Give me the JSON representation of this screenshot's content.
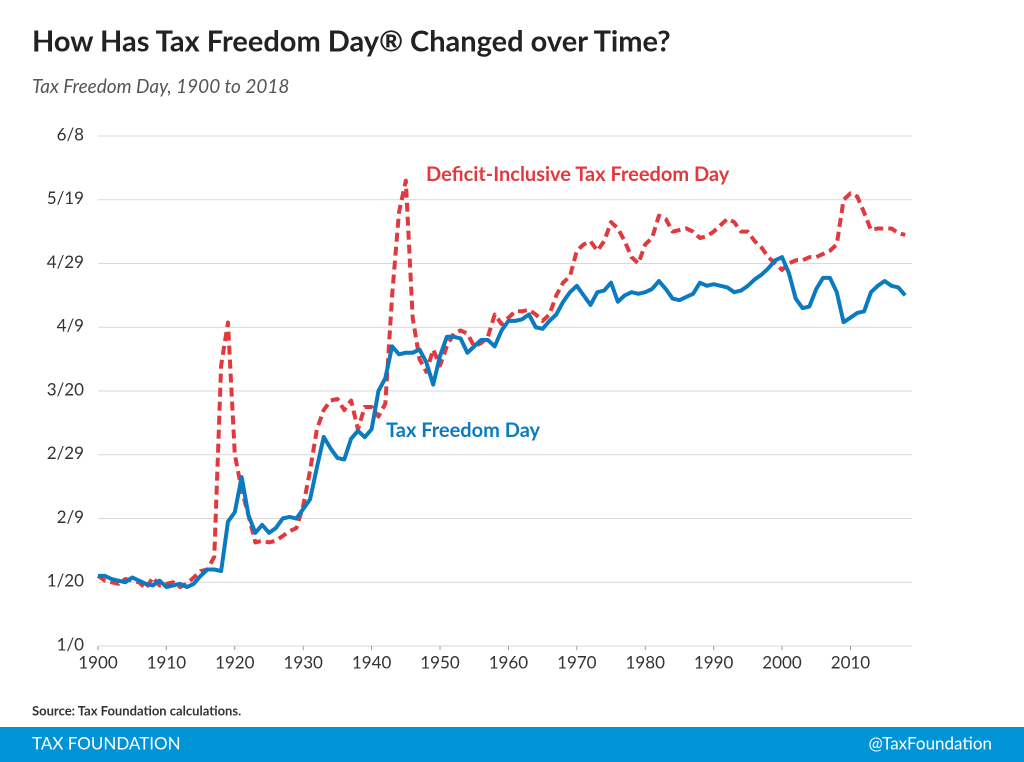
{
  "chart_data": {
    "type": "line",
    "title": "How Has Tax Freedom Day® Changed over Time?",
    "subtitle": "Tax Freedom Day, 1900 to 2018",
    "annotations": [
      "Deficit-Inclusive Tax Freedom Day",
      "Tax Freedom Day"
    ],
    "source": "Source: Tax Foundation calculations.",
    "footer_left": "TAX FOUNDATION",
    "footer_right": "@TaxFoundation",
    "x": [
      1900,
      1901,
      1902,
      1903,
      1904,
      1905,
      1906,
      1907,
      1908,
      1909,
      1910,
      1911,
      1912,
      1913,
      1914,
      1915,
      1916,
      1917,
      1918,
      1919,
      1920,
      1921,
      1922,
      1923,
      1924,
      1925,
      1926,
      1927,
      1928,
      1929,
      1930,
      1931,
      1932,
      1933,
      1934,
      1935,
      1936,
      1937,
      1938,
      1939,
      1940,
      1941,
      1942,
      1943,
      1944,
      1945,
      1946,
      1947,
      1948,
      1949,
      1950,
      1951,
      1952,
      1953,
      1954,
      1955,
      1956,
      1957,
      1958,
      1959,
      1960,
      1961,
      1962,
      1963,
      1964,
      1965,
      1966,
      1967,
      1968,
      1969,
      1970,
      1971,
      1972,
      1973,
      1974,
      1975,
      1976,
      1977,
      1978,
      1979,
      1980,
      1981,
      1982,
      1983,
      1984,
      1985,
      1986,
      1987,
      1988,
      1989,
      1990,
      1991,
      1992,
      1993,
      1994,
      1995,
      1996,
      1997,
      1998,
      1999,
      2000,
      2001,
      2002,
      2003,
      2004,
      2005,
      2006,
      2007,
      2008,
      2009,
      2010,
      2011,
      2012,
      2013,
      2014,
      2015,
      2016,
      2017,
      2018
    ],
    "series": [
      {
        "name": "Tax Freedom Day",
        "color": "#0b7bc1",
        "dashed": false,
        "values": [
          22,
          22,
          21,
          20.5,
          20,
          21.5,
          20.5,
          19.5,
          19,
          20.5,
          18.5,
          19,
          19.5,
          18.5,
          19.5,
          22,
          24,
          24,
          23.5,
          39,
          42,
          53,
          41,
          35.5,
          38,
          35.5,
          37,
          40,
          40.5,
          40,
          43,
          46,
          56,
          65.6,
          62,
          59,
          58.5,
          65,
          67.5,
          65.5,
          68,
          80,
          84,
          94,
          91.5,
          92,
          92,
          93,
          89,
          82,
          91,
          97,
          97,
          96.5,
          92,
          94,
          96,
          96,
          94,
          99,
          102,
          102,
          102.5,
          104,
          100,
          99.5,
          102,
          104,
          108,
          111,
          113,
          110,
          107,
          111,
          111.5,
          114,
          108,
          110,
          111,
          110.5,
          111,
          112,
          114.5,
          112,
          109,
          108.5,
          109.5,
          110.5,
          114,
          113,
          113.5,
          113,
          112.5,
          111,
          111.5,
          113,
          115,
          116.5,
          118.5,
          121,
          122,
          117,
          109,
          106,
          106.5,
          112,
          115.5,
          115.5,
          111,
          101.6,
          103,
          104.5,
          105,
          111,
          113,
          114.5,
          113,
          112.5,
          110
        ]
      },
      {
        "name": "Deficit-Inclusive Tax Freedom Day",
        "color": "#e0393e",
        "dashed": true,
        "values": [
          22,
          20.5,
          20,
          19.5,
          21,
          20.5,
          20,
          18,
          21.5,
          19,
          19.5,
          20,
          18.5,
          19.5,
          21.5,
          23.5,
          24,
          28,
          88,
          101.5,
          60,
          49,
          41,
          32.5,
          33,
          32.5,
          33,
          34.5,
          36,
          37,
          44,
          55,
          68,
          74,
          77,
          77.5,
          74,
          77,
          68,
          75,
          75,
          72,
          76,
          110,
          136,
          146,
          103,
          90,
          86,
          93,
          88,
          94,
          98,
          99,
          98,
          94,
          95,
          97,
          104,
          101,
          103,
          105,
          105,
          105.5,
          104,
          102,
          104,
          110,
          114,
          116,
          124,
          126,
          127,
          124,
          127,
          133,
          131,
          127,
          122,
          120,
          126,
          128,
          135,
          134,
          130,
          130.5,
          131,
          130,
          128,
          128.5,
          130,
          132,
          134,
          133,
          130,
          130,
          127,
          125,
          122,
          120,
          118,
          120,
          121,
          121,
          122,
          122,
          123,
          124,
          126,
          140,
          142,
          141,
          136,
          130.5,
          131,
          131,
          131,
          129.5,
          129
        ]
      }
    ],
    "xlim": [
      1900,
      2019
    ],
    "xticks": [
      1900,
      1910,
      1920,
      1930,
      1940,
      1950,
      1960,
      1970,
      1980,
      1990,
      2000,
      2010
    ],
    "ylim": [
      0,
      160
    ],
    "yticks": [
      {
        "value": 0,
        "label": "1/0"
      },
      {
        "value": 20,
        "label": "1/20"
      },
      {
        "value": 40,
        "label": "2/9"
      },
      {
        "value": 60,
        "label": "2/29"
      },
      {
        "value": 80,
        "label": "3/20"
      },
      {
        "value": 100,
        "label": "4/9"
      },
      {
        "value": 120,
        "label": "4/29"
      },
      {
        "value": 140,
        "label": "5/19"
      },
      {
        "value": 160,
        "label": "6/8"
      }
    ],
    "grid": true
  }
}
